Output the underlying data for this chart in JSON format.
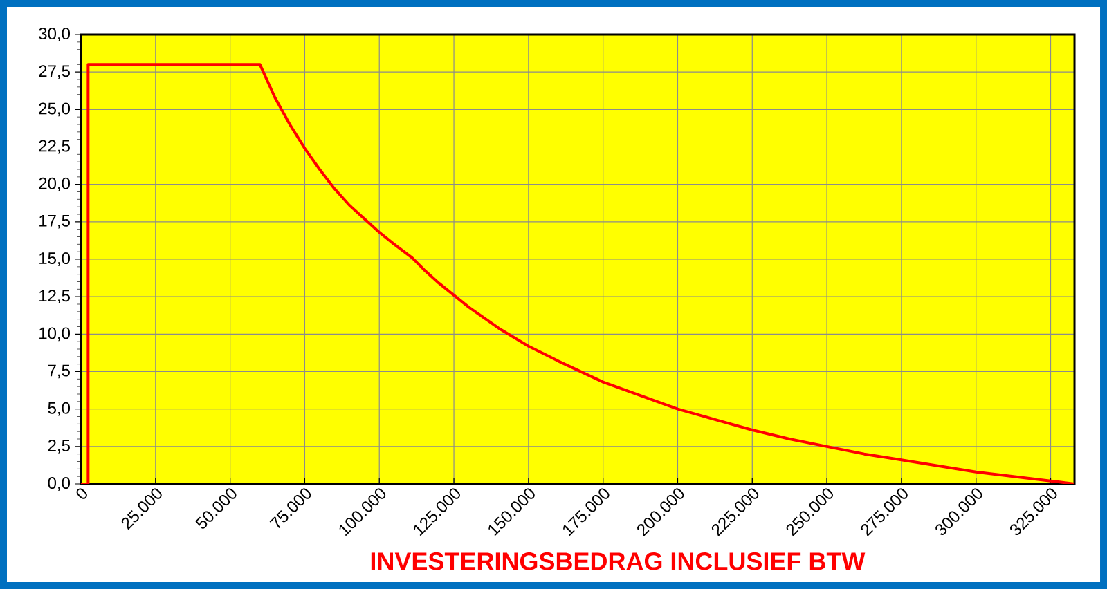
{
  "chart_data": {
    "type": "line",
    "xlabel": "INVESTERINGSBEDRAG INCLUSIEF BTW",
    "x": [
      0,
      2400,
      2400,
      60000,
      65000,
      70000,
      75000,
      80000,
      85000,
      90000,
      95000,
      100000,
      105000,
      111000,
      115000,
      120000,
      125000,
      130000,
      135000,
      140000,
      145000,
      150000,
      160000,
      175000,
      187500,
      200000,
      212500,
      225000,
      237500,
      250000,
      262500,
      275000,
      287500,
      300000,
      312500,
      325000,
      333000
    ],
    "series": [
      {
        "color": "#ff0000",
        "values": [
          0,
          0,
          28,
          28,
          25.8,
          24.0,
          22.4,
          21.0,
          19.7,
          18.6,
          17.7,
          16.8,
          16.0,
          15.1,
          14.3,
          13.4,
          12.6,
          11.8,
          11.1,
          10.4,
          9.8,
          9.2,
          8.2,
          6.8,
          5.9,
          5.0,
          4.3,
          3.6,
          3.0,
          2.5,
          2.0,
          1.6,
          1.2,
          0.8,
          0.5,
          0.2,
          0
        ]
      }
    ],
    "xlim": [
      0,
      333000
    ],
    "ylim": [
      0,
      30
    ],
    "xticks": [
      0,
      {
        "value": 25000,
        "label": "25.000"
      },
      {
        "value": 50000,
        "label": "50.000"
      },
      {
        "value": 75000,
        "label": "75.000"
      },
      {
        "value": 100000,
        "label": "100.000"
      },
      {
        "value": 125000,
        "label": "125.000"
      },
      {
        "value": 150000,
        "label": "150.000"
      },
      {
        "value": 175000,
        "label": "175.000"
      },
      {
        "value": 200000,
        "label": "200.000"
      },
      {
        "value": 225000,
        "label": "225.000"
      },
      {
        "value": 250000,
        "label": "250.000"
      },
      {
        "value": 275000,
        "label": "275.000"
      },
      {
        "value": 300000,
        "label": "300.000"
      },
      {
        "value": 325000,
        "label": "325.000"
      }
    ],
    "yticks": [
      {
        "value": 0,
        "label": "0,0"
      },
      {
        "value": 2.5,
        "label": "2,5"
      },
      {
        "value": 5,
        "label": "5,0"
      },
      {
        "value": 7.5,
        "label": "7,5"
      },
      {
        "value": 10,
        "label": "10,0"
      },
      {
        "value": 12.5,
        "label": "12,5"
      },
      {
        "value": 15,
        "label": "15,0"
      },
      {
        "value": 17.5,
        "label": "17,5"
      },
      {
        "value": 20,
        "label": "20,0"
      },
      {
        "value": 22.5,
        "label": "22,5"
      },
      {
        "value": 25,
        "label": "25,0"
      },
      {
        "value": 27.5,
        "label": "27,5"
      },
      {
        "value": 30,
        "label": "30,0"
      }
    ],
    "grid": true
  }
}
